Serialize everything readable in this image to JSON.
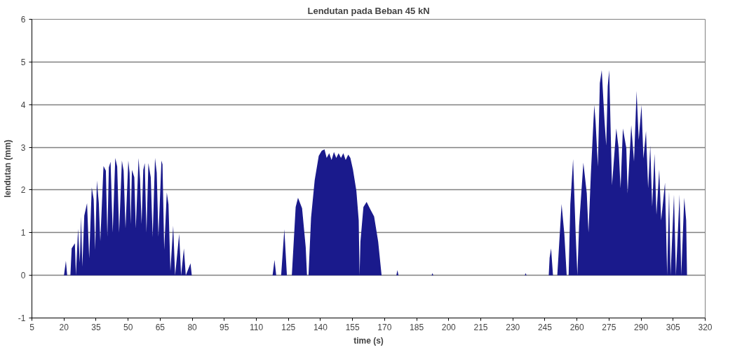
{
  "chart_data": {
    "type": "area",
    "title": "Lendutan pada Beban 45 kN",
    "xlabel": "time (s)",
    "ylabel": "lendutan (mm)",
    "x": [
      5,
      20.0,
      20.9,
      21.5,
      23.0,
      23.6,
      25.1,
      25.6,
      26.6,
      27.4,
      28.0,
      28.6,
      29.5,
      30.8,
      31.8,
      33.0,
      33.9,
      34.6,
      35.4,
      36.3,
      37.0,
      38.5,
      39.6,
      40.3,
      41.0,
      41.8,
      42.8,
      44.0,
      44.9,
      45.8,
      47.1,
      47.9,
      48.8,
      50.1,
      50.7,
      51.2,
      51.8,
      52.9,
      53.6,
      54.9,
      55.6,
      56.3,
      57.1,
      57.8,
      58.6,
      59.5,
      60.6,
      61.5,
      62.6,
      63.4,
      64.2,
      65.6,
      66.1,
      66.9,
      68.1,
      68.9,
      69.8,
      71.1,
      72.0,
      73.9,
      74.8,
      76.1,
      77.0,
      79.2,
      79.8,
      117.6,
      118.5,
      119.3,
      121.6,
      123.1,
      124.3,
      126.6,
      128.4,
      129.5,
      131.4,
      133.1,
      133.7,
      134.4,
      135.6,
      137.3,
      139.2,
      140.6,
      141.9,
      142.9,
      144.1,
      145.2,
      146.3,
      147.4,
      148.5,
      149.6,
      150.7,
      151.8,
      153.0,
      154.0,
      155.2,
      156.8,
      157.9,
      158.3,
      158.7,
      160.1,
      161.6,
      163.4,
      165.1,
      167.0,
      168.6,
      175.5,
      176.0,
      176.5,
      192.0,
      192.4,
      192.8,
      235.6,
      236.0,
      236.4,
      246.8,
      247.2,
      247.9,
      248.8,
      250.8,
      252.8,
      254.1,
      255.2,
      256.1,
      256.9,
      258.2,
      259.4,
      260.2,
      261.0,
      263.0,
      264.6,
      265.4,
      266.5,
      268.1,
      268.7,
      269.8,
      270.7,
      271.6,
      272.9,
      273.7,
      274.4,
      275.1,
      276.4,
      278.4,
      279.5,
      280.4,
      281.5,
      283.1,
      283.7,
      285.4,
      286.7,
      287.9,
      288.9,
      290.2,
      291.1,
      292.3,
      293.3,
      294.3,
      295.2,
      296.3,
      297.2,
      298.5,
      299.4,
      301.2,
      302.2,
      303.1,
      303.8,
      305.4,
      306.3,
      308.0,
      308.8,
      310.2,
      311.1,
      311.5,
      312.5
    ],
    "series": [
      {
        "color": "#1a1a8c",
        "values": [
          0,
          0,
          0.34,
          0,
          0,
          0.63,
          0.75,
          0,
          1.09,
          0.3,
          1.38,
          0.2,
          1.4,
          1.69,
          0.4,
          2.06,
          1.78,
          0.6,
          2.22,
          1.7,
          0.8,
          2.56,
          2.45,
          0.9,
          2.53,
          2.66,
          1.0,
          2.75,
          2.55,
          1.0,
          2.69,
          2.45,
          1.1,
          2.69,
          2.4,
          1.2,
          2.47,
          2.3,
          1.1,
          2.75,
          2.25,
          1.2,
          2.47,
          2.63,
          1.0,
          2.63,
          2.3,
          0.9,
          2.75,
          2.4,
          0.9,
          2.69,
          2.6,
          0.6,
          1.94,
          1.66,
          0.1,
          1.16,
          0,
          0.97,
          0,
          0.63,
          0,
          0.28,
          0,
          0,
          0.36,
          0,
          0,
          1.08,
          0,
          0,
          1.6,
          1.82,
          1.57,
          0.66,
          0,
          0,
          1.35,
          2.23,
          2.8,
          2.92,
          2.95,
          2.75,
          2.86,
          2.7,
          2.89,
          2.75,
          2.86,
          2.75,
          2.86,
          2.7,
          2.83,
          2.75,
          2.48,
          1.98,
          1.29,
          0,
          0.79,
          1.6,
          1.72,
          1.54,
          1.38,
          0.79,
          0,
          0,
          0.12,
          0,
          0,
          0.05,
          0,
          0,
          0.05,
          0,
          0,
          0.41,
          0.63,
          0,
          0,
          1.67,
          0.97,
          0,
          0,
          1.67,
          2.72,
          0.97,
          0,
          1.16,
          2.64,
          1.92,
          1.0,
          2.36,
          3.99,
          3.62,
          2.55,
          4.5,
          4.81,
          3.62,
          3.04,
          4.43,
          4.81,
          2.11,
          3.44,
          2.98,
          2.04,
          3.44,
          2.98,
          1.92,
          3.52,
          2.67,
          4.32,
          3.17,
          3.99,
          2.74,
          3.38,
          2.04,
          3.04,
          1.61,
          2.85,
          1.42,
          2.48,
          1.29,
          2.17,
          0,
          1.98,
          0,
          1.89,
          0,
          1.89,
          0,
          1.82,
          1.29,
          0,
          0
        ]
      }
    ],
    "xlim": [
      5,
      320
    ],
    "xticks": [
      5,
      20,
      35,
      50,
      65,
      80,
      95,
      110,
      125,
      140,
      155,
      170,
      185,
      200,
      215,
      230,
      245,
      260,
      275,
      290,
      305,
      320
    ],
    "ylim": [
      -1,
      6
    ],
    "yticks": [
      -1,
      0,
      1,
      2,
      3,
      4,
      5,
      6
    ],
    "grid": "y"
  }
}
